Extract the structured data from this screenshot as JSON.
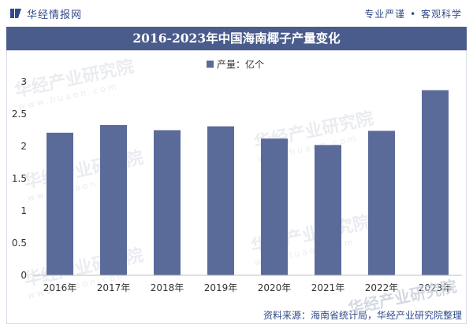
{
  "header": {
    "logo_text": "华经情报网",
    "tagline_left": "专业严谨",
    "tagline_right": "客观科学"
  },
  "watermark": {
    "text": "华经产业研究院",
    "url": "www.huaon.com"
  },
  "source": "资料来源：海南省统计局，华经产业研究院整理",
  "colors": {
    "bar": "#5b6b99",
    "title_bg": "#4a5c8c",
    "accent": "#2f4a8a"
  },
  "chart_data": {
    "type": "bar",
    "title": "2016-2023年中国海南椰子产量变化",
    "legend": "产量：亿个",
    "legend_position": "top-center",
    "categories": [
      "2016年",
      "2017年",
      "2018年",
      "2019年",
      "2020年",
      "2021年",
      "2022年",
      "2023年"
    ],
    "series": [
      {
        "name": "产量：亿个",
        "values": [
          2.21,
          2.33,
          2.25,
          2.31,
          2.12,
          2.02,
          2.24,
          2.87
        ]
      }
    ],
    "ylim": [
      0,
      3
    ],
    "yticks": [
      0,
      0.5,
      1,
      1.5,
      2,
      2.5,
      3
    ],
    "ytick_labels": [
      "0",
      "0.5",
      "1",
      "1.5",
      "2",
      "2.5",
      "3"
    ],
    "grid": false,
    "xlabel": "",
    "ylabel": ""
  }
}
